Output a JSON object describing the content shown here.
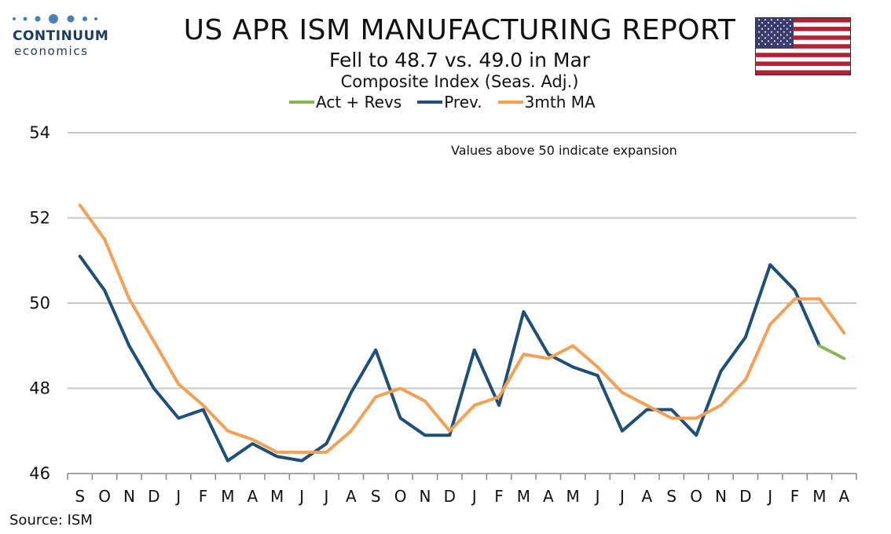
{
  "header": {
    "logo_word1": "CONTINUUM",
    "logo_word2": "economics",
    "title": "US APR ISM MANUFACTURING REPORT",
    "subtitle": "Fell to 48.7 vs. 49.0 in Mar",
    "subtitle2": "Composite Index (Seas. Adj.)"
  },
  "legend": [
    {
      "label": "Act + Revs",
      "color": "#8db35a"
    },
    {
      "label": "Prev.",
      "color": "#1f4e79"
    },
    {
      "label": "3mth MA",
      "color": "#f4a055"
    }
  ],
  "annotation": "Values above 50 indicate expansion",
  "source": "Source: ISM",
  "chart_data": {
    "type": "line",
    "categories": [
      "S",
      "O",
      "N",
      "D",
      "J",
      "F",
      "M",
      "A",
      "M",
      "J",
      "J",
      "A",
      "S",
      "O",
      "N",
      "D",
      "J",
      "F",
      "M",
      "A",
      "M",
      "J",
      "J",
      "A",
      "S",
      "O",
      "N",
      "D",
      "J",
      "F",
      "M",
      "A"
    ],
    "ylim": [
      46,
      54
    ],
    "yticks": [
      46,
      48,
      50,
      52,
      54
    ],
    "grid": true,
    "legend_position": "top",
    "series": [
      {
        "name": "Prev.",
        "color": "#1f4e79",
        "values": [
          51.1,
          50.3,
          49.0,
          48.0,
          47.3,
          47.5,
          46.3,
          46.7,
          46.4,
          46.3,
          46.7,
          47.9,
          48.9,
          47.3,
          46.9,
          46.9,
          48.9,
          47.6,
          49.8,
          48.8,
          48.5,
          48.3,
          47.0,
          47.5,
          47.5,
          46.9,
          48.4,
          49.2,
          50.9,
          50.3,
          49.0,
          null
        ]
      },
      {
        "name": "Act + Revs",
        "color": "#8db35a",
        "values": [
          null,
          null,
          null,
          null,
          null,
          null,
          null,
          null,
          null,
          null,
          null,
          null,
          null,
          null,
          null,
          null,
          null,
          null,
          null,
          null,
          null,
          null,
          null,
          null,
          null,
          null,
          null,
          null,
          null,
          null,
          49.0,
          48.7
        ]
      },
      {
        "name": "3mth MA",
        "color": "#f4a055",
        "values": [
          52.3,
          51.5,
          50.1,
          49.1,
          48.1,
          47.6,
          47.0,
          46.8,
          46.5,
          46.5,
          46.5,
          47.0,
          47.8,
          48.0,
          47.7,
          47.0,
          47.6,
          47.8,
          48.8,
          48.7,
          49.0,
          48.5,
          47.9,
          47.6,
          47.3,
          47.3,
          47.6,
          48.2,
          49.5,
          50.1,
          50.1,
          49.3
        ]
      }
    ]
  }
}
